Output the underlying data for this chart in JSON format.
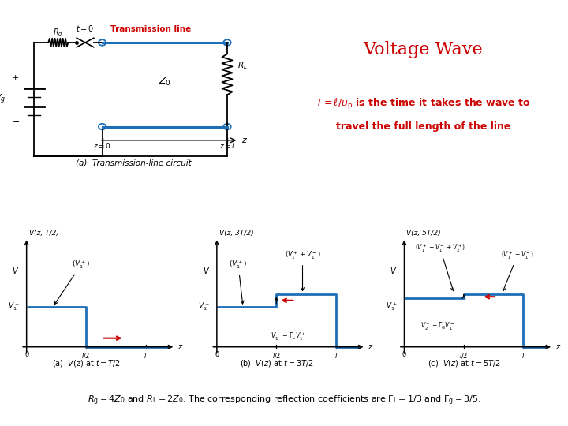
{
  "title": "Voltage Wave",
  "title_color": "#CC0000",
  "bg_color": "#FFFFFF",
  "blue_color": "#1E6FB5",
  "red_color": "#CC0000",
  "black_color": "#000000",
  "plot_bottom_text": "$R_\\mathrm{g} = 4Z_0$ and $R_\\mathrm{L} = 2Z_0$. The corresponding reflection coefficients are $\\Gamma_\\mathrm{L} = 1/3$ and $\\Gamma_\\mathrm{g} = 3/5$.",
  "graph_a_caption": "(a)  $V(z)$ at $t = T/2$",
  "graph_b_caption": "(b)  $V(z)$ at $t = 3T/2$",
  "graph_c_caption": "(c)  $V(z)$ at $t = 5T/2$",
  "v1p": 0.55,
  "v1m": 0.18,
  "v2p": 0.12
}
